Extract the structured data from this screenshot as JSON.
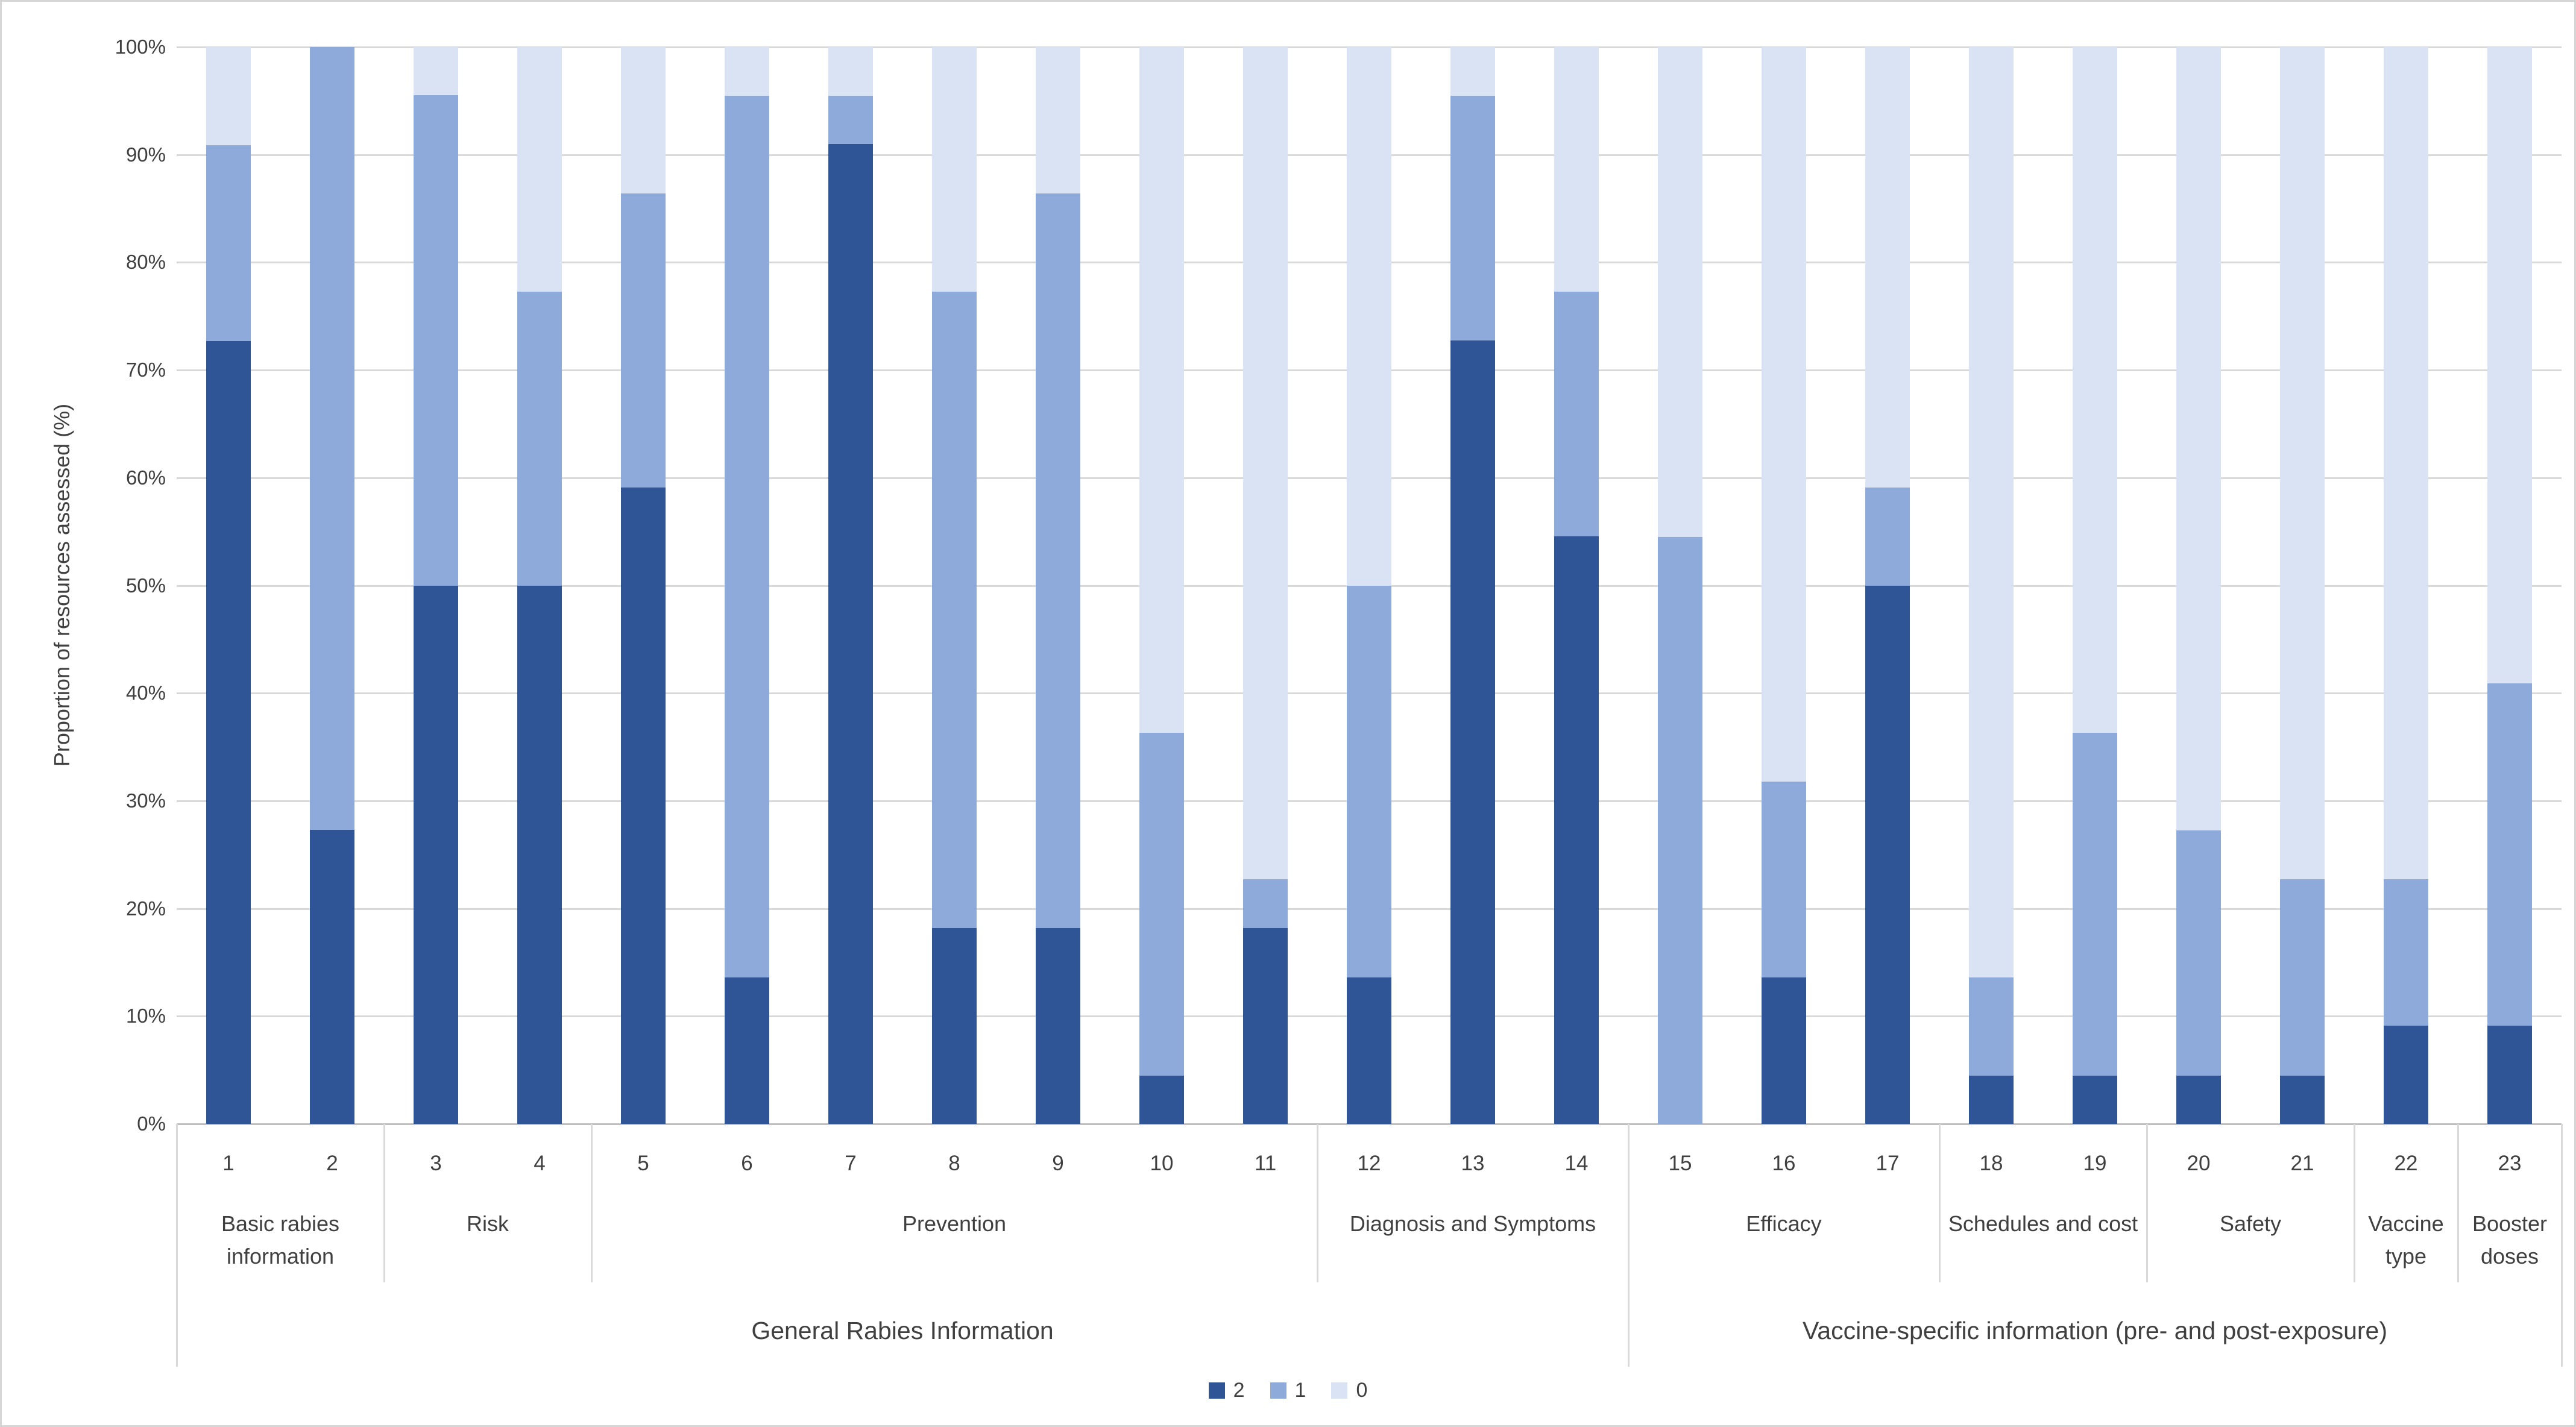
{
  "figure": {
    "y_axis_title": "Proportion of resources assessed (%)"
  },
  "chart_data": {
    "type": "bar",
    "stacked": true,
    "stack_total": 100,
    "title": "",
    "xlabel": "",
    "ylabel": "Proportion of resources assessed (%)",
    "ylim": [
      0,
      100
    ],
    "grid": true,
    "legend_position": "bottom-center",
    "y_ticks": [
      "0%",
      "10%",
      "20%",
      "30%",
      "40%",
      "50%",
      "60%",
      "70%",
      "80%",
      "90%",
      "100%"
    ],
    "categories": [
      "1",
      "2",
      "3",
      "4",
      "5",
      "6",
      "7",
      "8",
      "9",
      "10",
      "11",
      "12",
      "13",
      "14",
      "15",
      "16",
      "17",
      "18",
      "19",
      "20",
      "21",
      "22",
      "23"
    ],
    "series": [
      {
        "name": "2",
        "color": "#2F5597",
        "values": [
          72.7,
          27.3,
          50.0,
          50.0,
          59.1,
          13.6,
          90.9,
          18.2,
          18.2,
          4.5,
          18.2,
          13.6,
          72.7,
          54.5,
          0.0,
          13.6,
          50.0,
          4.5,
          4.5,
          4.5,
          4.5,
          9.1,
          9.1
        ]
      },
      {
        "name": "1",
        "color": "#8EAADB",
        "values": [
          18.2,
          72.7,
          45.5,
          27.3,
          27.3,
          81.8,
          4.5,
          59.1,
          68.2,
          31.8,
          4.5,
          36.4,
          22.7,
          22.7,
          54.5,
          18.2,
          9.1,
          9.1,
          31.8,
          22.7,
          18.2,
          13.6,
          31.8
        ]
      },
      {
        "name": "0",
        "color": "#DAE3F3",
        "values": [
          9.1,
          0.0,
          4.5,
          22.7,
          13.6,
          4.5,
          4.5,
          22.7,
          13.6,
          63.6,
          77.3,
          50.0,
          4.5,
          22.7,
          45.5,
          68.2,
          40.9,
          86.4,
          63.6,
          72.7,
          77.3,
          77.3,
          59.1
        ]
      }
    ],
    "groups": [
      {
        "label": "Basic rabies information",
        "span": [
          1,
          2
        ]
      },
      {
        "label": "Risk",
        "span": [
          3,
          4
        ]
      },
      {
        "label": "Prevention",
        "span": [
          5,
          11
        ]
      },
      {
        "label": "Diagnosis and Symptoms",
        "span": [
          12,
          14
        ]
      },
      {
        "label": "Efficacy",
        "span": [
          15,
          17
        ]
      },
      {
        "label": "Schedules and cost",
        "span": [
          18,
          19
        ]
      },
      {
        "label": "Safety",
        "span": [
          20,
          21
        ]
      },
      {
        "label": "Vaccine type",
        "span": [
          22,
          22
        ]
      },
      {
        "label": "Booster doses",
        "span": [
          23,
          23
        ]
      }
    ],
    "super_groups": [
      {
        "label": "General Rabies Information",
        "span": [
          1,
          14
        ]
      },
      {
        "label": "Vaccine-specific information (pre- and post-exposure)",
        "span": [
          15,
          23
        ]
      }
    ],
    "legend": [
      {
        "label": "2",
        "color": "#2F5597"
      },
      {
        "label": "1",
        "color": "#8EAADB"
      },
      {
        "label": "0",
        "color": "#DAE3F3"
      }
    ],
    "colors": {
      "gridline": "#D9D9D9",
      "axis_line": "#BFBFBF",
      "text": "#404040"
    }
  }
}
